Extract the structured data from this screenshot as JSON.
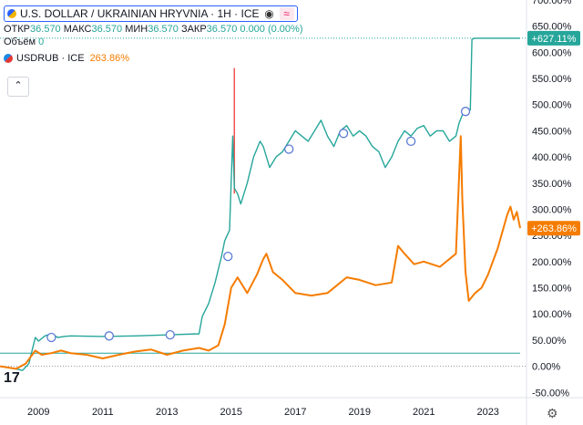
{
  "header": {
    "symbol_title": "U.S. DOLLAR / UKRAINIAN HRYVNIA · 1H · ICE",
    "ohlc": [
      {
        "label": "ОТКР",
        "value": "36.570"
      },
      {
        "label": "МАКС",
        "value": "36.570"
      },
      {
        "label": "МИН",
        "value": "36.570"
      },
      {
        "label": "ЗАКР",
        "value": "36.570"
      }
    ],
    "change": "0.000 (0.00%)",
    "volume_label": "Объём",
    "volume_value": "0",
    "compare_symbol": "USDRUB · ICE",
    "compare_value": "263.86%",
    "collapse_icon": "chevron-up-icon",
    "eye_icon": "eye-icon",
    "wave_icon": "indicator-wave-icon"
  },
  "colors": {
    "main_line": "#26a69a",
    "compare_line": "#f57c00",
    "up_candle": "#26a69a",
    "down_candle": "#ef5350",
    "main_badge": "#26a69a",
    "compare_badge": "#f57c00",
    "marker_stroke": "#5b7bd5"
  },
  "chart_data": {
    "type": "line",
    "ylabel_unit": "%",
    "ylim": [
      -60,
      700
    ],
    "xlim": [
      2007.8,
      2024.2
    ],
    "y_ticks": [
      "700.00%",
      "650.00%",
      "600.00%",
      "550.00%",
      "500.00%",
      "450.00%",
      "400.00%",
      "350.00%",
      "300.00%",
      "250.00%",
      "200.00%",
      "150.00%",
      "100.00%",
      "50.00%",
      "0.00%",
      "-50.00%"
    ],
    "y_tick_values": [
      700,
      650,
      600,
      550,
      500,
      450,
      400,
      350,
      300,
      250,
      200,
      150,
      100,
      50,
      0,
      -50
    ],
    "x_ticks": [
      "2009",
      "2011",
      "2013",
      "2015",
      "2017",
      "2019",
      "2021",
      "2023"
    ],
    "x_tick_values": [
      2009,
      2011,
      2013,
      2015,
      2017,
      2019,
      2021,
      2023
    ],
    "series": [
      {
        "name": "U.S. DOLLAR / UKRAINIAN HRYVNIA",
        "x": [
          2007.8,
          2008.3,
          2008.5,
          2008.7,
          2008.8,
          2008.9,
          2009.0,
          2009.2,
          2009.4,
          2009.6,
          2009.8,
          2010.0,
          2011.0,
          2012.0,
          2013.0,
          2014.0,
          2014.1,
          2014.3,
          2014.5,
          2014.7,
          2014.8,
          2014.95,
          2015.05,
          2015.1,
          2015.2,
          2015.3,
          2015.5,
          2015.7,
          2015.9,
          2016.0,
          2016.2,
          2016.4,
          2016.6,
          2016.8,
          2017.0,
          2017.2,
          2017.4,
          2017.6,
          2017.8,
          2018.0,
          2018.2,
          2018.4,
          2018.6,
          2018.8,
          2019.0,
          2019.2,
          2019.4,
          2019.6,
          2019.8,
          2020.0,
          2020.2,
          2020.4,
          2020.6,
          2020.8,
          2021.0,
          2021.2,
          2021.4,
          2021.6,
          2021.8,
          2022.0,
          2022.1,
          2022.2,
          2022.4,
          2022.45,
          2022.5,
          2022.6,
          2023.0,
          2023.5,
          2024.0
        ],
        "values": [
          0,
          -5,
          -8,
          5,
          30,
          55,
          48,
          58,
          62,
          55,
          57,
          58,
          57,
          58,
          60,
          62,
          95,
          120,
          160,
          210,
          240,
          260,
          440,
          340,
          330,
          310,
          350,
          400,
          430,
          420,
          380,
          400,
          410,
          430,
          450,
          440,
          430,
          450,
          470,
          440,
          420,
          450,
          460,
          440,
          450,
          440,
          420,
          410,
          380,
          400,
          430,
          450,
          440,
          455,
          460,
          440,
          450,
          450,
          430,
          440,
          465,
          480,
          490,
          490,
          625,
          627,
          627,
          627,
          627
        ]
      },
      {
        "name": "USDRUB · ICE",
        "x": [
          2007.8,
          2008.3,
          2008.6,
          2008.9,
          2009.1,
          2009.4,
          2009.7,
          2010.0,
          2010.5,
          2011.0,
          2011.5,
          2012.0,
          2012.5,
          2013.0,
          2013.5,
          2014.0,
          2014.3,
          2014.6,
          2014.8,
          2015.0,
          2015.2,
          2015.5,
          2015.8,
          2016.0,
          2016.1,
          2016.3,
          2016.6,
          2017.0,
          2017.5,
          2018.0,
          2018.3,
          2018.6,
          2019.0,
          2019.5,
          2020.0,
          2020.2,
          2020.4,
          2020.7,
          2021.0,
          2021.5,
          2022.0,
          2022.15,
          2022.2,
          2022.3,
          2022.4,
          2022.6,
          2022.8,
          2023.0,
          2023.3,
          2023.6,
          2023.7,
          2023.8,
          2023.9,
          2024.0
        ],
        "values": [
          0,
          -5,
          5,
          30,
          22,
          25,
          30,
          25,
          22,
          15,
          22,
          28,
          32,
          22,
          30,
          35,
          30,
          40,
          80,
          150,
          170,
          140,
          175,
          205,
          215,
          180,
          165,
          140,
          135,
          140,
          155,
          170,
          165,
          155,
          160,
          230,
          215,
          195,
          200,
          190,
          215,
          440,
          320,
          180,
          125,
          140,
          150,
          175,
          225,
          290,
          305,
          280,
          295,
          264
        ]
      },
      {
        "name": "baseline",
        "x": [
          2007.8,
          2024.0
        ],
        "values": [
          25,
          25
        ]
      }
    ],
    "markers": [
      {
        "x": 2009.4,
        "y": 55
      },
      {
        "x": 2011.2,
        "y": 58
      },
      {
        "x": 2013.1,
        "y": 60
      },
      {
        "x": 2014.9,
        "y": 210
      },
      {
        "x": 2016.8,
        "y": 415
      },
      {
        "x": 2018.5,
        "y": 445
      },
      {
        "x": 2020.6,
        "y": 430
      },
      {
        "x": 2022.3,
        "y": 487
      }
    ],
    "last_values": [
      {
        "label": "+627.11%",
        "value": 627.11
      },
      {
        "label": "+263.86%",
        "value": 263.86
      }
    ]
  },
  "footer": {
    "logo_text": "17",
    "settings_icon": "gear-icon"
  }
}
